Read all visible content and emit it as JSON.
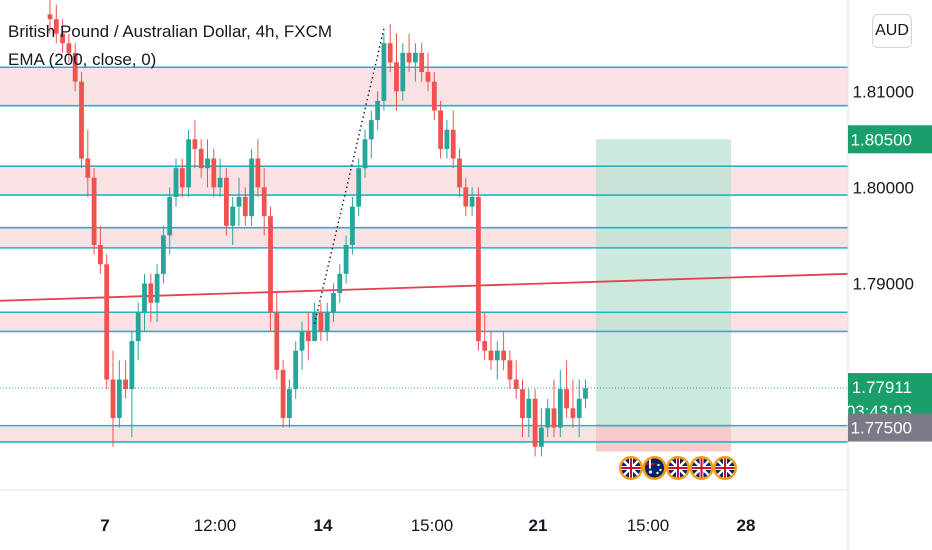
{
  "header": {
    "title": "British Pound / Australian Dollar, 4h, FXCM",
    "indicator": "EMA (200, close, 0)",
    "currency": "AUD"
  },
  "chart_data": {
    "type": "candlestick",
    "symbol": "GBPAUD",
    "ylim": [
      1.7685,
      1.8195
    ],
    "y_ticks": [
      1.81,
      1.8,
      1.79
    ],
    "y_tick_labels": [
      "1.81000",
      "1.80000",
      "1.79000"
    ],
    "x_ticks": [
      {
        "label": "7",
        "bold": true
      },
      {
        "label": "12:00",
        "bold": false
      },
      {
        "label": "14",
        "bold": true
      },
      {
        "label": "15:00",
        "bold": false
      },
      {
        "label": "21",
        "bold": true
      },
      {
        "label": "15:00",
        "bold": false
      },
      {
        "label": "28",
        "bold": true
      }
    ],
    "price_labels": [
      {
        "price": 1.805,
        "text": "1.80500",
        "color": "#1a9e6c"
      },
      {
        "price": 1.77911,
        "text": "1.77911",
        "sub": "03:43:03",
        "color": "#1a9e6c"
      },
      {
        "price": 1.775,
        "text": "1.77500",
        "color": "#787b86"
      }
    ],
    "support_resistance": [
      1.8125,
      1.8085,
      1.8022,
      1.7992,
      1.7958,
      1.7937,
      1.787,
      1.785,
      1.7752,
      1.7735
    ],
    "zones": [
      [
        1.8085,
        1.8125
      ],
      [
        1.7992,
        1.8022
      ],
      [
        1.7937,
        1.7958
      ],
      [
        1.785,
        1.787
      ],
      [
        1.7735,
        1.7752
      ]
    ],
    "ema_200": {
      "start": 1.7882,
      "end": 1.791
    },
    "position": {
      "target": 1.805,
      "entry": 1.7752,
      "stop": 1.7725
    },
    "candles": [
      [
        1.818,
        1.8195,
        1.816,
        1.8175
      ],
      [
        1.8175,
        1.819,
        1.815,
        1.816
      ],
      [
        1.816,
        1.8175,
        1.814,
        1.815
      ],
      [
        1.815,
        1.816,
        1.813,
        1.814
      ],
      [
        1.814,
        1.815,
        1.81,
        1.811
      ],
      [
        1.811,
        1.812,
        1.802,
        1.803
      ],
      [
        1.803,
        1.806,
        1.799,
        1.801
      ],
      [
        1.801,
        1.802,
        1.793,
        1.794
      ],
      [
        1.794,
        1.796,
        1.791,
        1.792
      ],
      [
        1.792,
        1.793,
        1.779,
        1.78
      ],
      [
        1.78,
        1.783,
        1.773,
        1.776
      ],
      [
        1.776,
        1.782,
        1.775,
        1.78
      ],
      [
        1.78,
        1.782,
        1.778,
        1.779
      ],
      [
        1.779,
        1.785,
        1.774,
        1.784
      ],
      [
        1.784,
        1.788,
        1.782,
        1.787
      ],
      [
        1.787,
        1.791,
        1.785,
        1.79
      ],
      [
        1.79,
        1.791,
        1.786,
        1.788
      ],
      [
        1.788,
        1.792,
        1.786,
        1.791
      ],
      [
        1.791,
        1.796,
        1.79,
        1.795
      ],
      [
        1.795,
        1.8,
        1.793,
        1.799
      ],
      [
        1.799,
        1.803,
        1.798,
        1.802
      ],
      [
        1.802,
        1.803,
        1.799,
        1.8
      ],
      [
        1.8,
        1.806,
        1.799,
        1.805
      ],
      [
        1.805,
        1.807,
        1.802,
        1.804
      ],
      [
        1.804,
        1.805,
        1.801,
        1.802
      ],
      [
        1.802,
        1.805,
        1.8,
        1.803
      ],
      [
        1.803,
        1.804,
        1.799,
        1.8
      ],
      [
        1.8,
        1.803,
        1.799,
        1.801
      ],
      [
        1.801,
        1.802,
        1.795,
        1.796
      ],
      [
        1.796,
        1.799,
        1.794,
        1.798
      ],
      [
        1.798,
        1.801,
        1.796,
        1.799
      ],
      [
        1.799,
        1.8,
        1.796,
        1.797
      ],
      [
        1.797,
        1.804,
        1.796,
        1.803
      ],
      [
        1.803,
        1.805,
        1.799,
        1.8
      ],
      [
        1.8,
        1.802,
        1.795,
        1.797
      ],
      [
        1.797,
        1.798,
        1.785,
        1.787
      ],
      [
        1.787,
        1.789,
        1.78,
        1.781
      ],
      [
        1.781,
        1.782,
        1.775,
        1.776
      ],
      [
        1.776,
        1.78,
        1.775,
        1.779
      ],
      [
        1.779,
        1.784,
        1.778,
        1.783
      ],
      [
        1.783,
        1.786,
        1.781,
        1.785
      ],
      [
        1.785,
        1.787,
        1.782,
        1.784
      ],
      [
        1.784,
        1.788,
        1.784,
        1.787
      ],
      [
        1.787,
        1.788,
        1.784,
        1.785
      ],
      [
        1.785,
        1.788,
        1.784,
        1.787
      ],
      [
        1.787,
        1.79,
        1.786,
        1.789
      ],
      [
        1.789,
        1.792,
        1.788,
        1.791
      ],
      [
        1.791,
        1.795,
        1.79,
        1.794
      ],
      [
        1.794,
        1.799,
        1.793,
        1.798
      ],
      [
        1.798,
        1.803,
        1.797,
        1.802
      ],
      [
        1.802,
        1.806,
        1.801,
        1.805
      ],
      [
        1.805,
        1.808,
        1.803,
        1.807
      ],
      [
        1.807,
        1.81,
        1.806,
        1.809
      ],
      [
        1.809,
        1.816,
        1.808,
        1.815
      ],
      [
        1.815,
        1.817,
        1.812,
        1.813
      ],
      [
        1.813,
        1.816,
        1.808,
        1.81
      ],
      [
        1.81,
        1.815,
        1.809,
        1.814
      ],
      [
        1.814,
        1.816,
        1.812,
        1.813
      ],
      [
        1.813,
        1.815,
        1.811,
        1.814
      ],
      [
        1.814,
        1.815,
        1.811,
        1.812
      ],
      [
        1.812,
        1.814,
        1.81,
        1.811
      ],
      [
        1.811,
        1.812,
        1.807,
        1.808
      ],
      [
        1.808,
        1.809,
        1.803,
        1.804
      ],
      [
        1.804,
        1.807,
        1.803,
        1.806
      ],
      [
        1.806,
        1.808,
        1.802,
        1.803
      ],
      [
        1.803,
        1.804,
        1.799,
        1.8
      ],
      [
        1.8,
        1.801,
        1.797,
        1.798
      ],
      [
        1.798,
        1.8,
        1.797,
        1.799
      ],
      [
        1.799,
        1.8,
        1.783,
        1.784
      ],
      [
        1.784,
        1.787,
        1.782,
        1.783
      ],
      [
        1.783,
        1.785,
        1.781,
        1.782
      ],
      [
        1.782,
        1.784,
        1.78,
        1.783
      ],
      [
        1.783,
        1.785,
        1.781,
        1.782
      ],
      [
        1.782,
        1.783,
        1.779,
        1.78
      ],
      [
        1.78,
        1.782,
        1.778,
        1.779
      ],
      [
        1.779,
        1.78,
        1.774,
        1.776
      ],
      [
        1.776,
        1.779,
        1.774,
        1.778
      ],
      [
        1.778,
        1.779,
        1.772,
        1.773
      ],
      [
        1.773,
        1.777,
        1.772,
        1.775
      ],
      [
        1.775,
        1.778,
        1.774,
        1.777
      ],
      [
        1.777,
        1.78,
        1.774,
        1.775
      ],
      [
        1.775,
        1.781,
        1.774,
        1.779
      ],
      [
        1.779,
        1.782,
        1.776,
        1.777
      ],
      [
        1.777,
        1.78,
        1.775,
        1.776
      ],
      [
        1.776,
        1.78,
        1.774,
        1.778
      ],
      [
        1.778,
        1.78,
        1.777,
        1.7791
      ]
    ]
  },
  "event_flags": [
    "gb-flag-icon",
    "au-flag-icon",
    "gb-flag-icon",
    "gb-flag-icon",
    "gb-flag-icon"
  ]
}
